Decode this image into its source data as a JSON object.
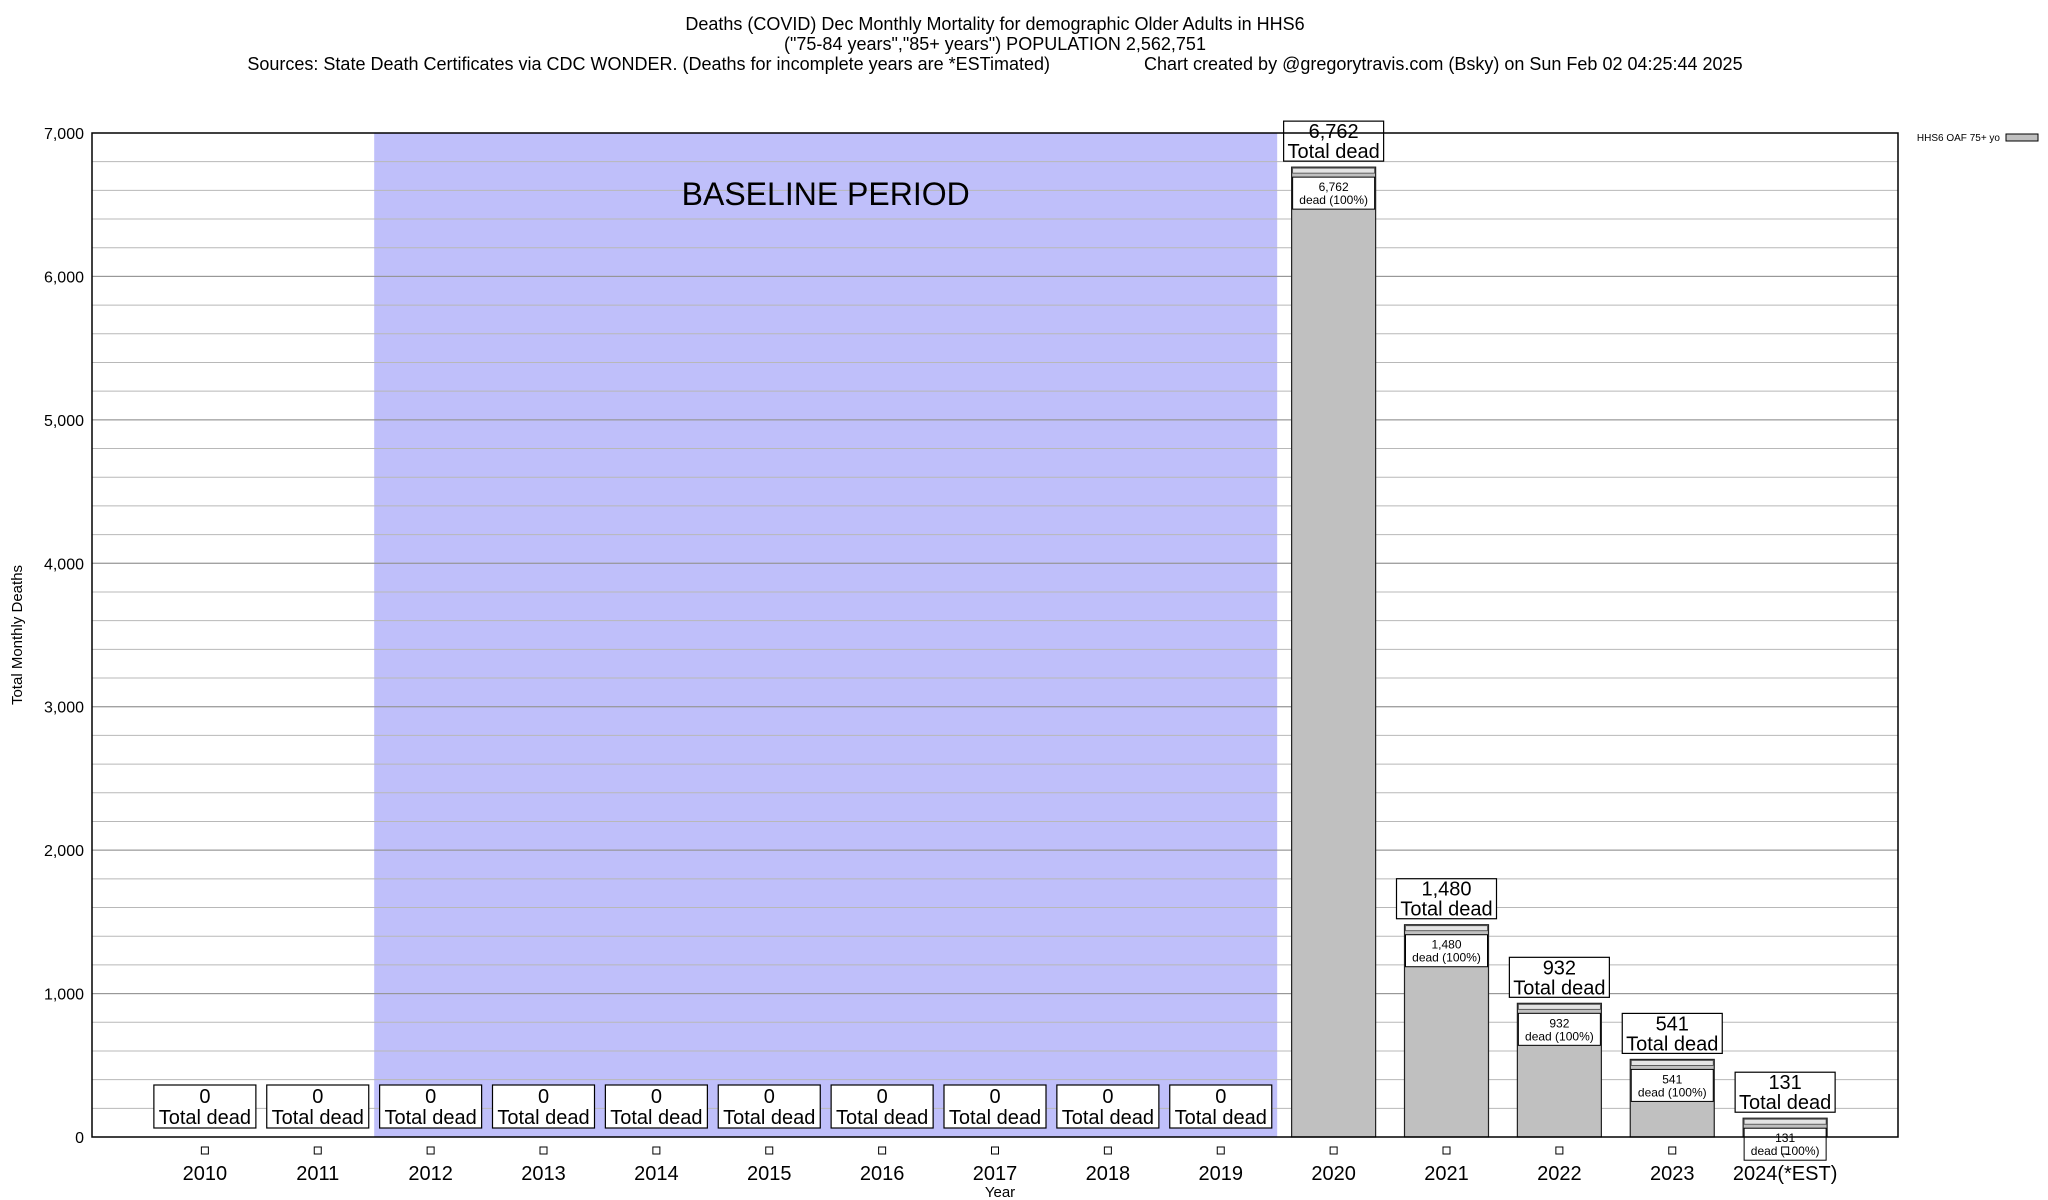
{
  "chart_data": {
    "type": "bar",
    "title": "Deaths (COVID) Dec Monthly Mortality for demographic Older Adults in HHS6",
    "subtitle": "(\"75-84 years\",\"85+ years\") POPULATION 2,562,751",
    "sources": "Sources: State Death Certificates via CDC WONDER. (Deaths for incomplete years are *ESTimated)",
    "credit": "Chart created by @gregorytravis.com (Bsky) on Sun Feb 02 04:25:44 2025",
    "xlabel": "Year",
    "ylabel": "Total Monthly Deaths",
    "ylim": [
      0,
      7000
    ],
    "yticks": [
      0,
      1000,
      2000,
      3000,
      4000,
      5000,
      6000,
      7000
    ],
    "ytick_labels": [
      "0",
      "1,000",
      "2,000",
      "3,000",
      "4,000",
      "5,000",
      "6,000",
      "7,000"
    ],
    "minor_grid_step": 200,
    "grid": true,
    "categories": [
      "2010",
      "2011",
      "2012",
      "2013",
      "2014",
      "2015",
      "2016",
      "2017",
      "2018",
      "2019",
      "2020",
      "2021",
      "2022",
      "2023",
      "2024(*EST)"
    ],
    "series": [
      {
        "name": "HHS6 OAF 75+ yo",
        "color": "#c0c0c0",
        "values": [
          0,
          0,
          0,
          0,
          0,
          0,
          0,
          0,
          0,
          0,
          6762,
          1480,
          932,
          541,
          131
        ]
      }
    ],
    "value_labels": [
      "0",
      "0",
      "0",
      "0",
      "0",
      "0",
      "0",
      "0",
      "0",
      "0",
      "6,762",
      "1,480",
      "932",
      "541",
      "131"
    ],
    "total_label": "Total dead",
    "inner_label_suffix": "dead (100%)",
    "baseline": {
      "label": "BASELINE PERIOD",
      "from": "2012",
      "to": "2019",
      "color": "#bfbffa"
    },
    "legend": {
      "position": "top-right",
      "label": "HHS6 OAF 75+ yo"
    }
  }
}
